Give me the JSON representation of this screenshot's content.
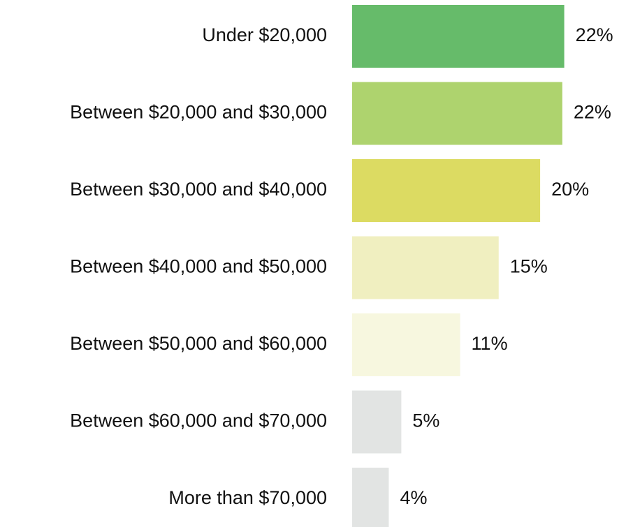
{
  "chart_data": {
    "type": "hbar",
    "categories": [
      "Under $20,000",
      "Between $20,000 and $30,000",
      "Between $30,000 and $40,000",
      "Between $40,000 and $50,000",
      "Between $50,000 and $60,000",
      "Between $60,000 and $70,000",
      "More than $70,000"
    ],
    "values": [
      22,
      21.8,
      19.5,
      15.2,
      11.2,
      5.1,
      3.8
    ],
    "value_labels": [
      "22%",
      "22%",
      "20%",
      "15%",
      "11%",
      "5%",
      "4%"
    ],
    "colors": [
      "#66bb6a",
      "#aed36e",
      "#dcdb62",
      "#f0efc0",
      "#f7f7df",
      "#e2e4e3",
      "#e2e4e3"
    ]
  }
}
